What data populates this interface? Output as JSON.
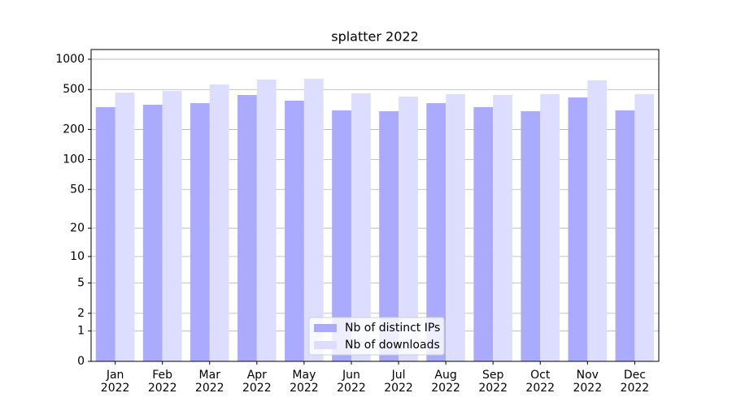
{
  "chart_data": {
    "type": "bar",
    "title": "splatter 2022",
    "categories": [
      "Jan\n2022",
      "Feb\n2022",
      "Mar\n2022",
      "Apr\n2022",
      "May\n2022",
      "Jun\n2022",
      "Jul\n2022",
      "Aug\n2022",
      "Sep\n2022",
      "Oct\n2022",
      "Nov\n2022",
      "Dec\n2022"
    ],
    "series": [
      {
        "name": "Nb of distinct IPs",
        "color": "#aaaaff",
        "values": [
          334,
          353,
          366,
          441,
          387,
          310,
          304,
          366,
          334,
          304,
          417,
          310
        ]
      },
      {
        "name": "Nb of downloads",
        "color": "#ddddff",
        "values": [
          466,
          484,
          561,
          628,
          640,
          458,
          425,
          450,
          441,
          450,
          617,
          450
        ]
      }
    ],
    "yscale": "log1p",
    "ylim": [
      0,
      1249
    ],
    "yticks": [
      0,
      1,
      2,
      5,
      10,
      20,
      50,
      100,
      200,
      500,
      1000
    ],
    "grid": true,
    "legend": "lower center"
  }
}
